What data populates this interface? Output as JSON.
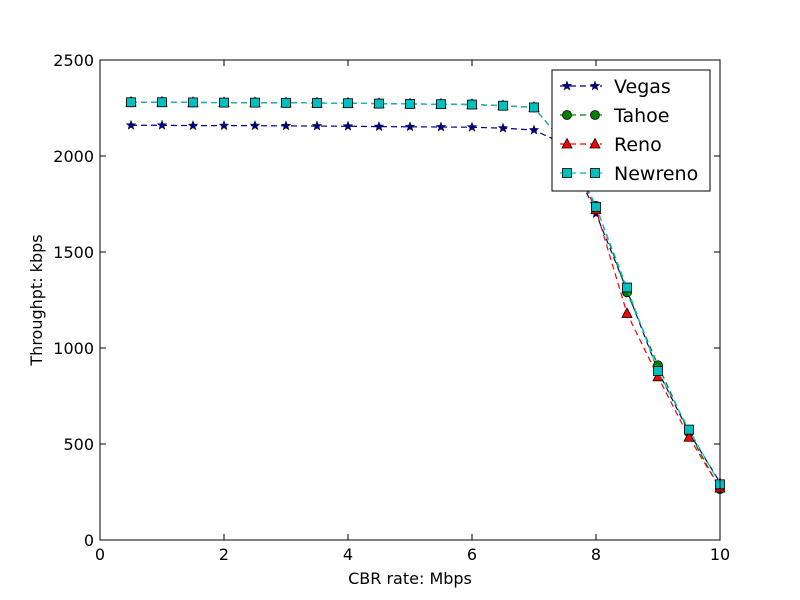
{
  "chart_data": {
    "type": "line",
    "title": "",
    "xlabel": "CBR rate: Mbps",
    "ylabel": "Throughpt: kbps",
    "xlim": [
      0,
      10
    ],
    "ylim": [
      0,
      2500
    ],
    "xticks": [
      0,
      2,
      4,
      6,
      8,
      10
    ],
    "yticks": [
      0,
      500,
      1000,
      1500,
      2000,
      2500
    ],
    "grid": false,
    "legend_position": "top-right",
    "x": [
      0.5,
      1,
      1.5,
      2,
      2.5,
      3,
      3.5,
      4,
      4.5,
      5,
      5.5,
      6,
      6.5,
      7,
      7.5,
      8,
      8.5,
      9,
      9.5,
      10
    ],
    "series": [
      {
        "name": "Vegas",
        "color": "#00008b",
        "marker": "star",
        "values": [
          2160,
          2160,
          2158,
          2158,
          2158,
          2157,
          2156,
          2155,
          2153,
          2152,
          2151,
          2150,
          2145,
          2135,
          2060,
          1700,
          1300,
          880,
          560,
          300
        ]
      },
      {
        "name": "Tahoe",
        "color": "#008000",
        "marker": "circle",
        "values": [
          2280,
          2280,
          2279,
          2278,
          2278,
          2277,
          2276,
          2275,
          2273,
          2271,
          2270,
          2268,
          2262,
          2253,
          2060,
          1740,
          1290,
          910,
          560,
          265
        ]
      },
      {
        "name": "Reno",
        "color": "#ff0000",
        "marker": "triangle",
        "values": [
          2280,
          2280,
          2279,
          2278,
          2278,
          2277,
          2276,
          2275,
          2273,
          2271,
          2270,
          2268,
          2262,
          2253,
          2060,
          1720,
          1180,
          850,
          535,
          270
        ]
      },
      {
        "name": "Newreno",
        "color": "#00bfbf",
        "marker": "square",
        "values": [
          2280,
          2280,
          2279,
          2278,
          2278,
          2277,
          2276,
          2275,
          2273,
          2271,
          2270,
          2268,
          2262,
          2253,
          2060,
          1735,
          1315,
          880,
          575,
          290
        ]
      }
    ]
  }
}
